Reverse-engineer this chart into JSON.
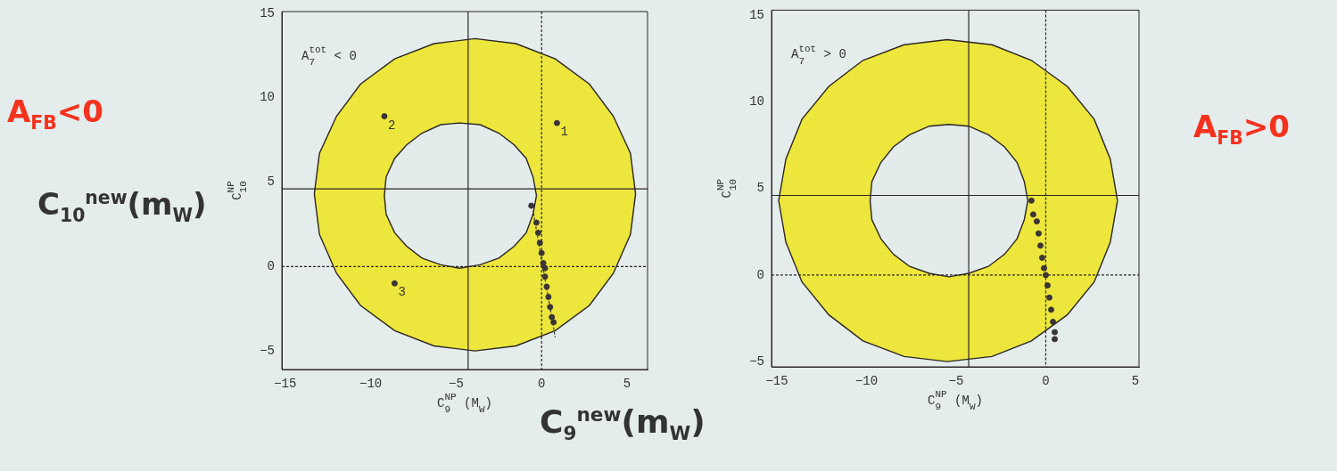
{
  "chart_data": [
    {
      "type": "scatter",
      "xlabel": "C$_{9}$$^{NP}$ (M$_{W}$)",
      "ylabel": "C$_{10}$$^{NP}$",
      "xlim": [
        -15.2,
        6.2
      ],
      "ylim": [
        -6.1,
        15.1
      ],
      "xticks": [
        -15,
        -10,
        -5,
        0,
        5
      ],
      "yticks": [
        -5,
        0,
        5,
        10,
        15
      ],
      "grid": false,
      "legend": false,
      "series": [
        {
          "type": "area",
          "color": "#ede63c",
          "x": [
            5.5,
            5.2,
            4.2,
            2.8,
            0.8,
            -1.5,
            -3.9,
            -6.3,
            -8.6,
            -10.6,
            -12.0,
            -13.0,
            -13.3,
            -13.0,
            -12.0,
            -10.6,
            -8.6,
            -6.3,
            -3.9,
            -1.5,
            0.8,
            2.8,
            4.2,
            5.2,
            5.5
          ],
          "values": [
            4.3,
            6.7,
            8.9,
            10.8,
            12.3,
            13.2,
            13.5,
            13.2,
            12.3,
            10.8,
            8.9,
            6.7,
            4.3,
            1.9,
            -0.4,
            -2.3,
            -3.8,
            -4.7,
            -5.0,
            -4.7,
            -3.8,
            -2.3,
            -0.4,
            1.9,
            4.3
          ]
        },
        {
          "type": "area",
          "color": "#e3ebeb",
          "x": [
            -0.3,
            -0.5,
            -0.9,
            -1.6,
            -2.5,
            -3.6,
            -4.8,
            -5.9,
            -7.0,
            -7.9,
            -8.6,
            -9.1,
            -9.2,
            -9.1,
            -8.6,
            -7.9,
            -7.0,
            -5.9,
            -4.8,
            -3.6,
            -2.5,
            -1.6,
            -0.9,
            -0.5,
            -0.3
          ],
          "values": [
            4.2,
            5.3,
            6.4,
            7.2,
            7.9,
            8.4,
            8.5,
            8.4,
            7.9,
            7.2,
            6.4,
            5.3,
            4.2,
            3.1,
            2.0,
            1.2,
            0.5,
            0.1,
            -0.1,
            0.1,
            0.5,
            1.2,
            2.0,
            3.1,
            4.2
          ]
        },
        {
          "type": "line",
          "line_style": "dashed",
          "color": "#3b3535",
          "x": [
            -0.5,
            0.8
          ],
          "values": [
            3.3,
            -4.2
          ]
        },
        {
          "type": "scatter",
          "marker": "circle",
          "color": "#3b3535",
          "x": [
            0.9,
            -9.2,
            -8.6
          ],
          "values": [
            8.5,
            8.9,
            -1.0
          ]
        },
        {
          "type": "scatter",
          "marker": "circle",
          "color": "#3b3535",
          "x": [
            -0.6,
            -0.3,
            -0.2,
            -0.1,
            0.0,
            0.1,
            0.2,
            0.2,
            0.3,
            0.4,
            0.5,
            0.6,
            0.7
          ],
          "values": [
            3.6,
            2.6,
            2.0,
            1.4,
            0.8,
            0.2,
            -0.1,
            -0.6,
            -1.2,
            -1.8,
            -2.4,
            -3.0,
            -3.3
          ]
        }
      ],
      "ref_lines": [
        {
          "axis": "x",
          "value": -4.3,
          "line_style": "solid"
        },
        {
          "axis": "y",
          "value": 4.6,
          "line_style": "solid"
        },
        {
          "axis": "x",
          "value": 0,
          "line_style": "dashed"
        },
        {
          "axis": "y",
          "value": 0,
          "line_style": "dashed"
        }
      ],
      "annotations": [
        "A$_{7}$$^{tot}$ < 0",
        {
          "text": "1",
          "x": 0.9,
          "y": 8.5
        },
        {
          "text": "2",
          "x": -9.2,
          "y": 8.9
        },
        {
          "text": "3",
          "x": -8.6,
          "y": -1.0
        },
        "A$_{FB}$<0",
        "C$_{10}$$^{new}$(m$_{W}$)",
        "C$_{9}$$^{new}$(m$_{W}$)"
      ]
    },
    {
      "type": "scatter",
      "xlabel": "C$_{9}$$^{NP}$ (M$_{W}$)",
      "ylabel": "C$_{10}$$^{NP}$",
      "xlim": [
        -15.3,
        5.2
      ],
      "ylim": [
        -5.3,
        15.3
      ],
      "xticks": [
        -15,
        -10,
        -5,
        0,
        5
      ],
      "yticks": [
        -5,
        0,
        5,
        10,
        15
      ],
      "grid": false,
      "legend": false,
      "series": [
        {
          "type": "area",
          "color": "#ede63c",
          "x": [
            4.0,
            3.6,
            2.7,
            1.2,
            -0.8,
            -3.0,
            -5.5,
            -7.9,
            -10.2,
            -12.1,
            -13.6,
            -14.5,
            -14.9,
            -14.5,
            -13.6,
            -12.1,
            -10.2,
            -7.9,
            -5.5,
            -3.0,
            -0.8,
            1.2,
            2.7,
            3.6,
            4.0
          ],
          "values": [
            4.3,
            6.7,
            9.0,
            10.9,
            12.4,
            13.3,
            13.6,
            13.3,
            12.4,
            10.9,
            9.0,
            6.7,
            4.3,
            1.9,
            -0.4,
            -2.3,
            -3.8,
            -4.7,
            -5.0,
            -4.7,
            -3.8,
            -2.3,
            -0.4,
            1.9,
            4.3
          ]
        },
        {
          "type": "area",
          "color": "#e3ebeb",
          "x": [
            -1.0,
            -1.2,
            -1.6,
            -2.3,
            -3.2,
            -4.3,
            -5.4,
            -6.5,
            -7.6,
            -8.5,
            -9.2,
            -9.7,
            -9.8,
            -9.7,
            -9.2,
            -8.5,
            -7.6,
            -6.5,
            -5.4,
            -4.3,
            -3.2,
            -2.3,
            -1.6,
            -1.2,
            -1.0
          ],
          "values": [
            4.3,
            5.4,
            6.5,
            7.4,
            8.1,
            8.6,
            8.7,
            8.6,
            8.1,
            7.4,
            6.5,
            5.4,
            4.3,
            3.2,
            2.1,
            1.2,
            0.5,
            0.1,
            -0.1,
            0.1,
            0.5,
            1.2,
            2.1,
            3.2,
            4.3
          ]
        },
        {
          "type": "scatter",
          "marker": "circle",
          "color": "#3b3535",
          "x": [
            -0.8,
            -0.7,
            -0.5,
            -0.4,
            -0.3,
            -0.2,
            -0.1,
            0.0,
            0.1,
            0.2,
            0.3,
            0.4,
            0.5,
            0.5
          ],
          "values": [
            4.3,
            3.5,
            3.1,
            2.4,
            1.7,
            1.0,
            0.4,
            0.0,
            -0.6,
            -1.3,
            -2.0,
            -2.7,
            -3.3,
            -3.7
          ]
        }
      ],
      "ref_lines": [
        {
          "axis": "x",
          "value": -4.3,
          "line_style": "solid"
        },
        {
          "axis": "y",
          "value": 4.6,
          "line_style": "solid"
        },
        {
          "axis": "x",
          "value": 0,
          "line_style": "dashed"
        },
        {
          "axis": "y",
          "value": 0,
          "line_style": "dashed"
        }
      ],
      "annotations": [
        "A$_{7}$$^{tot}$ > 0",
        "A$_{FB}$>0"
      ]
    }
  ]
}
